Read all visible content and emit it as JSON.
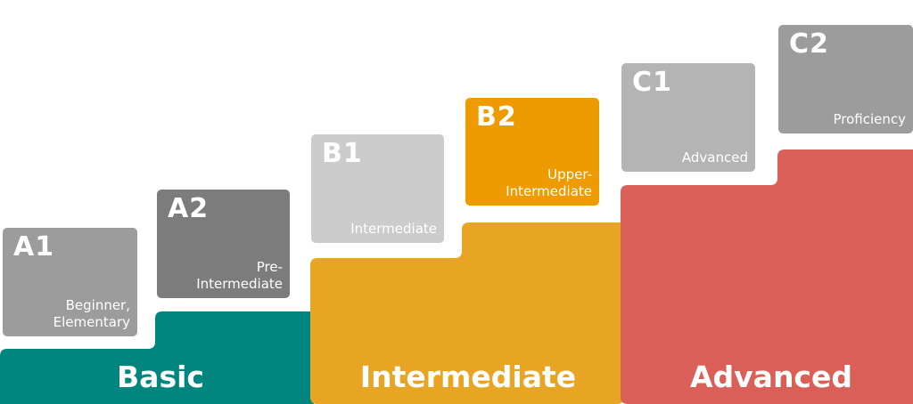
{
  "colors": {
    "basic": "#00857f",
    "intermediate": "#e8a523",
    "advanced": "#d95f57",
    "a1": "#9c9c9c",
    "a2": "#7c7c7c",
    "b1": "#cccccc",
    "b2": "#ee9b00",
    "c1": "#b4b4b4",
    "c2": "#9c9c9c"
  },
  "groups": {
    "basic": "Basic",
    "intermediate": "Intermediate",
    "advanced": "Advanced"
  },
  "levels": {
    "a1": {
      "code": "A1",
      "desc1": "Beginner,",
      "desc2": "Elementary"
    },
    "a2": {
      "code": "A2",
      "desc1": "Pre-",
      "desc2": "Intermediate"
    },
    "b1": {
      "code": "B1",
      "desc1": "Intermediate"
    },
    "b2": {
      "code": "B2",
      "desc1": "Upper-",
      "desc2": "Intermediate"
    },
    "c1": {
      "code": "C1",
      "desc1": "Advanced"
    },
    "c2": {
      "code": "C2",
      "desc1": "Proficiency"
    }
  }
}
